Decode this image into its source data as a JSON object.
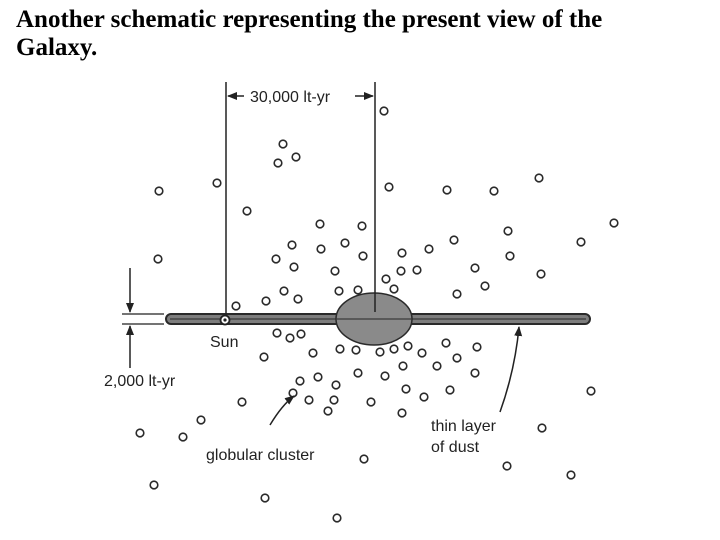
{
  "slide": {
    "title_line1": "Another schematic representing the present view of the",
    "title_line2": "Galaxy."
  },
  "diagram": {
    "labels": {
      "disk_width": "30,000 lt-yr",
      "disk_thickness": "2,000 lt-yr",
      "sun": "Sun",
      "globular_cluster": "globular cluster",
      "dust_line1": "thin layer",
      "dust_line2": "of dust"
    },
    "colors": {
      "disk_fill": "#7d7d7d",
      "bulge_fill": "#8a8a8a",
      "ink": "#222222"
    },
    "icons": {
      "sun_marker": "sun-marker-icon",
      "cluster_marker": "globular-cluster-icon"
    }
  }
}
